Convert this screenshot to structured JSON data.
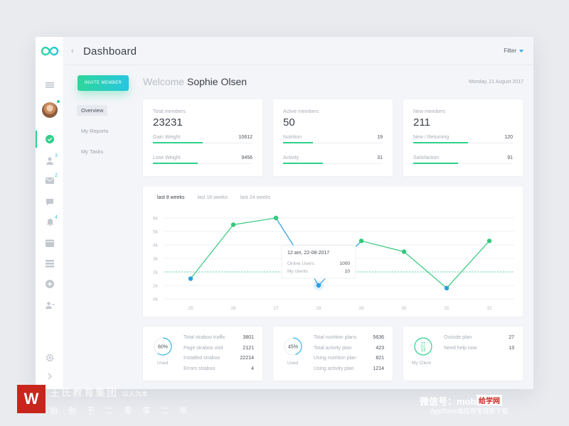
{
  "header": {
    "title": "Dashboard",
    "filter_label": "Filter"
  },
  "rail": {
    "badge_users": "3",
    "badge_mail": "2",
    "badge_notify": "4"
  },
  "subnav": {
    "invite_label": "INVITE MEMBER",
    "items": [
      {
        "label": "Overview",
        "active": true
      },
      {
        "label": "My Reports"
      },
      {
        "label": "My Tasks"
      }
    ]
  },
  "welcome": {
    "prefix": "Welcome",
    "name": "Sophie Olsen",
    "date": "Monday, 21 August 2017"
  },
  "stats": [
    {
      "label": "Total members",
      "value": "23231",
      "rows": [
        {
          "label": "Gain Weight",
          "value": "10612",
          "fill": 0.5
        },
        {
          "label": "Lose Weight",
          "value": "9456",
          "fill": 0.45
        }
      ]
    },
    {
      "label": "Active members",
      "value": "50",
      "rows": [
        {
          "label": "Nutrition",
          "value": "19",
          "fill": 0.3
        },
        {
          "label": "Activity",
          "value": "31",
          "fill": 0.4
        }
      ]
    },
    {
      "label": "New members",
      "value": "211",
      "rows": [
        {
          "label": "New / Returning",
          "value": "120",
          "fill": 0.55
        },
        {
          "label": "Satisfaction",
          "value": "91",
          "fill": 0.45
        }
      ]
    }
  ],
  "chart_tabs": [
    {
      "label": "last 8 weeks",
      "active": true
    },
    {
      "label": "last 16 weeks"
    },
    {
      "label": "last 24 weeks"
    }
  ],
  "chart_data": {
    "type": "line",
    "x": [
      "25",
      "26",
      "27",
      "28",
      "29",
      "30",
      "31",
      "32"
    ],
    "values": [
      1500,
      5500,
      6000,
      1000,
      4300,
      3500,
      800,
      4300
    ],
    "ylim": [
      0,
      6000
    ],
    "yticks": [
      "0k",
      "1k",
      "2k",
      "3k",
      "4k",
      "5k",
      "6k"
    ],
    "reference_line": 2000,
    "highlight_index": 3,
    "colors": {
      "line": "#34c97e",
      "highlight": "#2f9fe0",
      "reference": "#2fd08a"
    },
    "tooltip": {
      "title": "12 am, 22-08-2017",
      "rows": [
        {
          "label": "Online Users",
          "value": "1000"
        },
        {
          "label": "My clients",
          "value": "10"
        }
      ]
    }
  },
  "bottom": [
    {
      "kind": "pct",
      "pct": "60%",
      "fraction": 0.6,
      "sub": "Used",
      "rows": [
        {
          "label": "Total straboo traffic",
          "value": "3801"
        },
        {
          "label": "Page straboo visit",
          "value": "2121"
        },
        {
          "label": "Installed straboo",
          "value": "22214"
        },
        {
          "label": "Errors straboo",
          "value": "4"
        }
      ]
    },
    {
      "kind": "pct",
      "pct": "45%",
      "fraction": 0.45,
      "sub": "Used",
      "rows": [
        {
          "label": "Total nutrition plans",
          "value": "5636"
        },
        {
          "label": "Total activity plan",
          "value": "423"
        },
        {
          "label": "Using nutrition plan",
          "value": "821"
        },
        {
          "label": "Using activity plan",
          "value": "1214"
        }
      ]
    },
    {
      "kind": "ratio",
      "top": "27",
      "bottom": "13",
      "sub": "My Client",
      "rows": [
        {
          "label": "Outside plan",
          "value": "27"
        },
        {
          "label": "Need help now",
          "value": "13"
        }
      ]
    }
  ],
  "watermark": {
    "logo": "W",
    "line1": "王氏教育集团",
    "line1_tag": "以人为本",
    "line2": "始 创 于 二 零 零 二 年",
    "right1": "微信号：mobileui",
    "right_chip": "给学网",
    "right2": "AppStore或应用宝搜索下载"
  }
}
